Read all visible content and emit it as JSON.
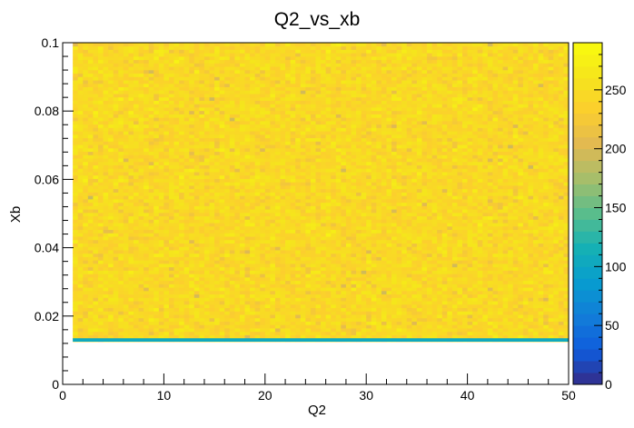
{
  "chart_data": {
    "type": "heatmap",
    "title": "Q2_vs_xb",
    "xlabel": "Q2",
    "ylabel": "Xb",
    "xlim": [
      0,
      50
    ],
    "ylim": [
      0,
      0.1
    ],
    "x_ticks": [
      0,
      10,
      20,
      30,
      40,
      50
    ],
    "x_tick_labels": [
      "0",
      "10",
      "20",
      "30",
      "40",
      "50"
    ],
    "y_ticks": [
      0,
      0.02,
      0.04,
      0.06,
      0.08,
      0.1
    ],
    "y_tick_labels": [
      "0",
      "0.02",
      "0.04",
      "0.06",
      "0.08",
      "0.1"
    ],
    "colorbar": {
      "range": [
        0,
        290
      ],
      "ticks": [
        0,
        50,
        100,
        150,
        200,
        250
      ],
      "tick_labels": [
        "0",
        "50",
        "100",
        "150",
        "200",
        "250"
      ]
    },
    "data_region": {
      "x": [
        1,
        50
      ],
      "y": [
        0.0125,
        0.1
      ]
    },
    "low_band": {
      "y": [
        0.0125,
        0.0135
      ],
      "value": 105
    },
    "typical_value": 240,
    "value_spread": [
      200,
      280
    ],
    "grid": false,
    "legend": "none"
  }
}
